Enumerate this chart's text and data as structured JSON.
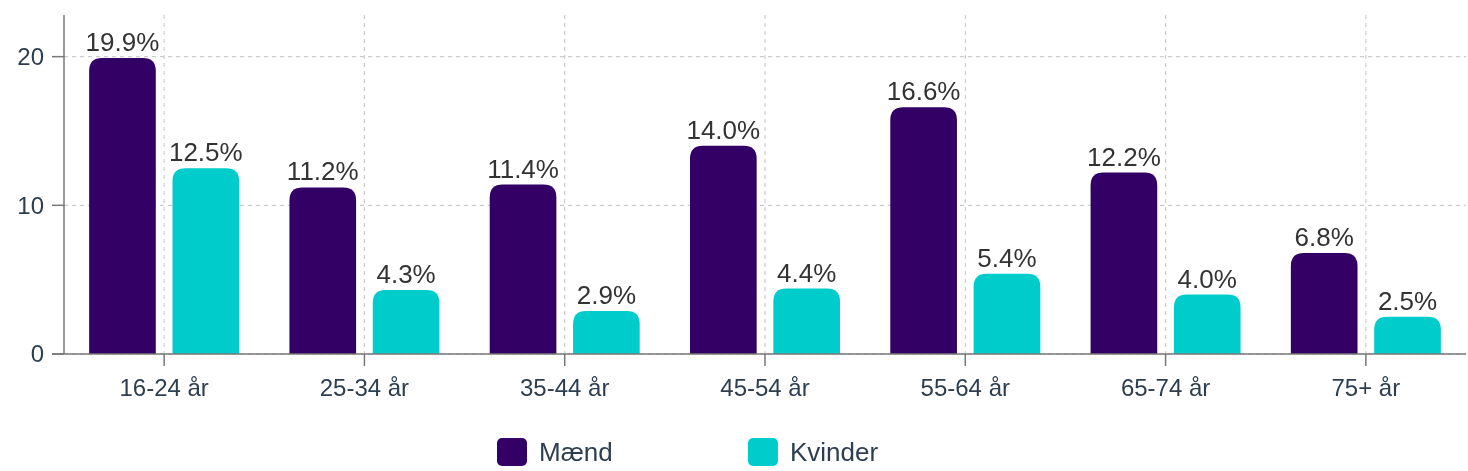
{
  "chart_data": {
    "type": "bar",
    "categories": [
      "16-24 år",
      "25-34 år",
      "35-44 år",
      "45-54 år",
      "55-64 år",
      "65-74 år",
      "75+ år"
    ],
    "series": [
      {
        "name": "Mænd",
        "color": "#330066",
        "values": [
          19.9,
          11.2,
          11.4,
          14.0,
          16.6,
          12.2,
          6.8
        ],
        "value_labels": [
          "19.9%",
          "11.2%",
          "11.4%",
          "14.0%",
          "16.6%",
          "12.2%",
          "6.8%"
        ]
      },
      {
        "name": "Kvinder",
        "color": "#00cccc",
        "values": [
          12.5,
          4.3,
          2.9,
          4.4,
          5.4,
          4.0,
          2.5
        ],
        "value_labels": [
          "12.5%",
          "4.3%",
          "2.9%",
          "4.4%",
          "5.4%",
          "4.0%",
          "2.5%"
        ]
      }
    ],
    "ylim": [
      0,
      22.8
    ],
    "yticks": [
      0,
      10,
      20
    ],
    "grid": true,
    "legend": "bottom"
  }
}
